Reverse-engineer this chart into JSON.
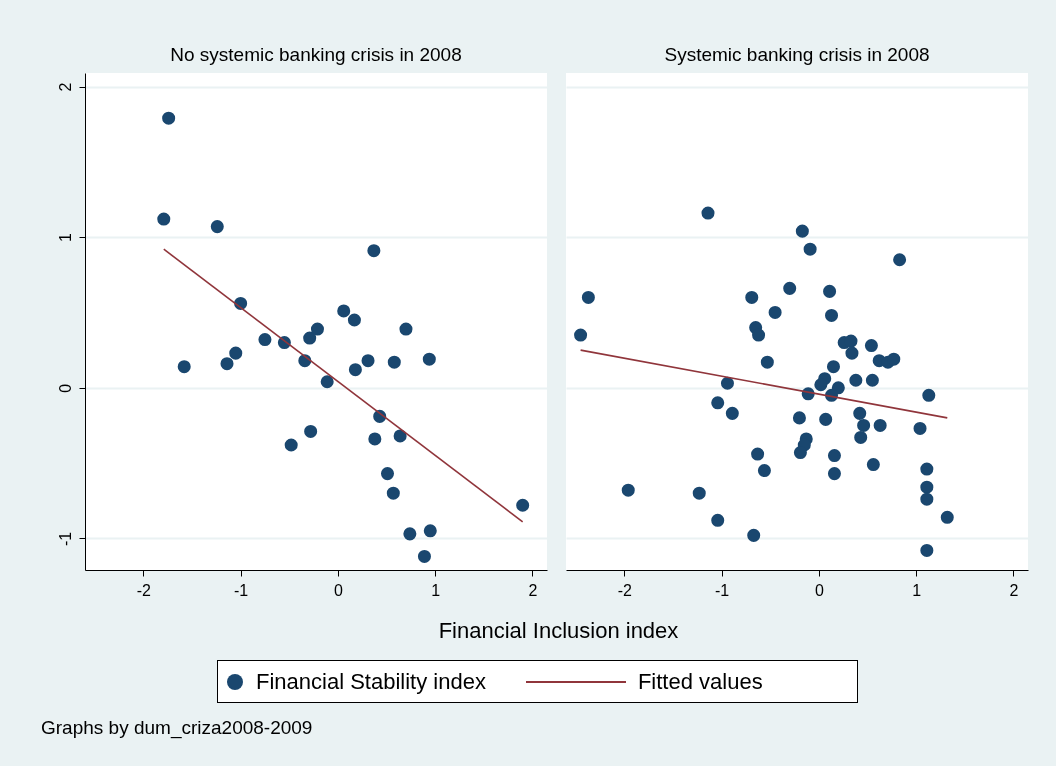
{
  "chart_data": [
    {
      "type": "scatter",
      "title": "No systemic banking crisis in 2008",
      "xlabel": "Financial Inclusion index",
      "annotations": [
        "Graphs by dum_criza2008-2009"
      ],
      "xlim": [
        -2.6,
        2.15
      ],
      "ylim": [
        -1.21,
        2.09
      ],
      "xticks": [
        -2,
        -1,
        0,
        1,
        2
      ],
      "yticks": [
        -1,
        0,
        1,
        2
      ],
      "grid": "y",
      "legend": "bottom",
      "series": [
        {
          "name": "Financial Stability index",
          "color": "#1a476f",
          "type": "scatter",
          "marker": "circle",
          "x": [
            -1.74,
            -1.79,
            -1.24,
            -1.0,
            -1.58,
            -1.14,
            -1.05,
            -0.75,
            -0.55,
            -0.48,
            -0.34,
            -0.29,
            -0.28,
            -0.21,
            -0.11,
            0.06,
            0.17,
            0.18,
            0.31,
            0.37,
            0.38,
            0.43,
            0.51,
            0.57,
            0.58,
            0.64,
            0.7,
            0.74,
            0.89,
            0.94,
            0.95,
            1.9
          ],
          "values": [
            1.79,
            1.12,
            1.07,
            0.56,
            0.14,
            0.16,
            0.23,
            0.32,
            0.3,
            -0.38,
            0.18,
            0.33,
            -0.29,
            0.39,
            0.04,
            0.51,
            0.45,
            0.12,
            0.18,
            0.91,
            -0.34,
            -0.19,
            -0.57,
            -0.7,
            0.17,
            -0.32,
            0.39,
            -0.97,
            -1.12,
            0.19,
            -0.95,
            -0.78
          ]
        },
        {
          "name": "Fitted values",
          "color": "#90353b",
          "type": "line",
          "x": [
            -1.79,
            1.9
          ],
          "values": [
            0.92,
            -0.89
          ]
        }
      ]
    },
    {
      "type": "scatter",
      "title": "Systemic banking crisis in 2008",
      "xlim": [
        -2.6,
        2.15
      ],
      "ylim": [
        -1.21,
        2.09
      ],
      "xticks": [
        -2,
        -1,
        0,
        1,
        2
      ],
      "yticks": [
        -1,
        0,
        1,
        2
      ],
      "grid": "y",
      "legend": "bottom",
      "tick_labels": "x",
      "series": [
        {
          "name": "Financial Stability index",
          "color": "#1a476f",
          "type": "scatter",
          "marker": "circle",
          "x": [
            -1.14,
            -2.37,
            -2.45,
            -0.69,
            -0.3,
            -0.45,
            -0.65,
            -0.62,
            -0.53,
            -0.94,
            -1.04,
            -0.89,
            -0.63,
            -0.56,
            -1.96,
            -1.23,
            -1.04,
            -0.67,
            -0.17,
            -0.09,
            0.83,
            0.11,
            0.13,
            0.26,
            0.33,
            0.34,
            0.54,
            0.62,
            0.71,
            0.77,
            0.15,
            0.06,
            0.02,
            0.2,
            0.38,
            0.55,
            -0.11,
            0.13,
            1.13,
            -0.2,
            0.07,
            0.42,
            0.46,
            0.63,
            1.04,
            0.43,
            -0.13,
            -0.15,
            -0.19,
            0.16,
            0.16,
            0.56,
            1.11,
            1.11,
            1.11,
            1.32,
            1.11
          ],
          "values": [
            1.16,
            0.6,
            0.35,
            0.6,
            0.66,
            0.5,
            0.4,
            0.35,
            0.17,
            0.03,
            -0.1,
            -0.17,
            -0.44,
            -0.55,
            -0.68,
            -0.7,
            -0.88,
            -0.98,
            1.04,
            0.92,
            0.85,
            0.64,
            0.48,
            0.3,
            0.31,
            0.23,
            0.28,
            0.18,
            0.17,
            0.19,
            0.14,
            0.06,
            0.02,
            0.0,
            0.05,
            0.05,
            -0.04,
            -0.05,
            -0.05,
            -0.2,
            -0.21,
            -0.17,
            -0.25,
            -0.25,
            -0.27,
            -0.33,
            -0.34,
            -0.38,
            -0.43,
            -0.45,
            -0.57,
            -0.51,
            -0.54,
            -0.66,
            -0.74,
            -0.86,
            -1.08
          ]
        },
        {
          "name": "Fitted values",
          "color": "#90353b",
          "type": "line",
          "x": [
            -2.45,
            1.32
          ],
          "values": [
            0.25,
            -0.2
          ]
        }
      ]
    }
  ]
}
